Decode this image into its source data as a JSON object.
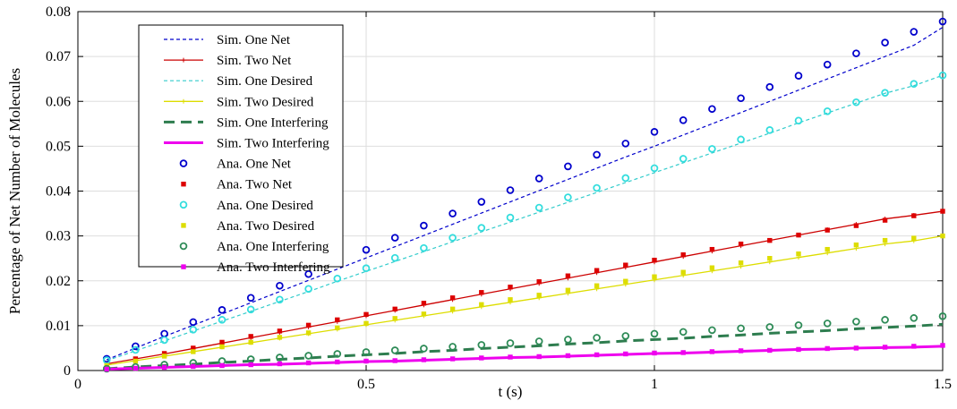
{
  "chart_data": {
    "type": "line",
    "xlabel": "t (s)",
    "ylabel": "Percentage of Net Number of Molecules",
    "xlim": [
      0,
      1.5
    ],
    "ylim": [
      0,
      0.08
    ],
    "xticks": [
      0,
      0.5,
      1,
      1.5
    ],
    "xtick_labels": [
      "0",
      "0.5",
      "1",
      "1.5"
    ],
    "yticks": [
      0,
      0.01,
      0.02,
      0.03,
      0.04,
      0.05,
      0.06,
      0.07,
      0.08
    ],
    "ytick_labels": [
      "0",
      "0.01",
      "0.02",
      "0.03",
      "0.04",
      "0.05",
      "0.06",
      "0.07",
      "0.08"
    ],
    "grid": true,
    "legend_position": "top-left",
    "x": [
      0.05,
      0.1,
      0.15,
      0.2,
      0.25,
      0.3,
      0.35,
      0.4,
      0.45,
      0.5,
      0.55,
      0.6,
      0.65,
      0.7,
      0.75,
      0.8,
      0.85,
      0.9,
      0.95,
      1.0,
      1.05,
      1.1,
      1.15,
      1.2,
      1.25,
      1.3,
      1.35,
      1.4,
      1.45,
      1.5
    ],
    "series": [
      {
        "name": "Sim. One Net",
        "style": "dashed",
        "color": "#0000cc",
        "values": [
          0.0024,
          0.005,
          0.0076,
          0.0101,
          0.0126,
          0.0151,
          0.0176,
          0.0201,
          0.0226,
          0.0251,
          0.0276,
          0.0301,
          0.0326,
          0.0351,
          0.0376,
          0.0401,
          0.0426,
          0.0451,
          0.0476,
          0.05,
          0.0525,
          0.055,
          0.0575,
          0.06,
          0.0625,
          0.065,
          0.0675,
          0.07,
          0.0725,
          0.0765
        ]
      },
      {
        "name": "Sim. Two Net",
        "style": "solid-plus",
        "color": "#cc0000",
        "values": [
          0.0015,
          0.0026,
          0.0037,
          0.0049,
          0.0061,
          0.0073,
          0.0085,
          0.0097,
          0.0109,
          0.0122,
          0.0134,
          0.0146,
          0.0158,
          0.017,
          0.0182,
          0.0194,
          0.0206,
          0.0218,
          0.023,
          0.0242,
          0.0254,
          0.0266,
          0.0278,
          0.029,
          0.0302,
          0.0314,
          0.0326,
          0.0338,
          0.0346,
          0.0355
        ]
      },
      {
        "name": "Sim. One Desired",
        "style": "dashed",
        "color": "#33cccc",
        "values": [
          0.0022,
          0.0044,
          0.0066,
          0.0088,
          0.011,
          0.0132,
          0.0154,
          0.0176,
          0.0199,
          0.0221,
          0.0243,
          0.0265,
          0.0287,
          0.0309,
          0.0331,
          0.0353,
          0.0375,
          0.0397,
          0.0419,
          0.0441,
          0.0463,
          0.0485,
          0.0507,
          0.0529,
          0.0552,
          0.0574,
          0.0596,
          0.0618,
          0.0635,
          0.0658
        ]
      },
      {
        "name": "Sim. Two  Desired",
        "style": "solid-plus",
        "color": "#dddd00",
        "values": [
          0.0012,
          0.0022,
          0.0032,
          0.0042,
          0.0052,
          0.0062,
          0.0072,
          0.0082,
          0.0092,
          0.0102,
          0.0112,
          0.0122,
          0.0132,
          0.0142,
          0.0152,
          0.0162,
          0.0172,
          0.0182,
          0.0192,
          0.0202,
          0.0212,
          0.0222,
          0.0232,
          0.0242,
          0.0252,
          0.0262,
          0.0272,
          0.0282,
          0.0289,
          0.03
        ]
      },
      {
        "name": "Sim. One Interfering",
        "style": "thick-dashed",
        "color": "#2e7d4f",
        "values": [
          0.0004,
          0.0008,
          0.0011,
          0.0014,
          0.0018,
          0.0021,
          0.0025,
          0.0028,
          0.0032,
          0.0035,
          0.0038,
          0.0042,
          0.0045,
          0.0049,
          0.0052,
          0.0055,
          0.0059,
          0.0062,
          0.0066,
          0.0069,
          0.0072,
          0.0076,
          0.0079,
          0.0083,
          0.0086,
          0.0089,
          0.0093,
          0.0096,
          0.0099,
          0.0103
        ]
      },
      {
        "name": "Sim. Two Interfering",
        "style": "thick-solid",
        "color": "#ee00ee",
        "values": [
          0.0003,
          0.0005,
          0.0007,
          0.0009,
          0.0011,
          0.0013,
          0.0014,
          0.0016,
          0.0018,
          0.002,
          0.0021,
          0.0023,
          0.0025,
          0.0027,
          0.0029,
          0.003,
          0.0032,
          0.0034,
          0.0036,
          0.0038,
          0.0039,
          0.0041,
          0.0043,
          0.0045,
          0.0047,
          0.0048,
          0.005,
          0.0051,
          0.0052,
          0.0054
        ]
      },
      {
        "name": "Ana. One Net",
        "style": "circle",
        "color": "#0000cc",
        "values": [
          0.0026,
          0.0054,
          0.0082,
          0.0108,
          0.0135,
          0.0162,
          0.0189,
          0.0215,
          0.0242,
          0.0269,
          0.0296,
          0.0323,
          0.035,
          0.0376,
          0.0402,
          0.0428,
          0.0455,
          0.0481,
          0.0506,
          0.0532,
          0.0558,
          0.0583,
          0.0607,
          0.0632,
          0.0657,
          0.0682,
          0.0707,
          0.0731,
          0.0755,
          0.0778
        ]
      },
      {
        "name": "Ana. Two Net",
        "style": "square",
        "color": "#dd0000",
        "values": [
          0.0013,
          0.0026,
          0.0038,
          0.005,
          0.0063,
          0.0076,
          0.0088,
          0.0101,
          0.0113,
          0.0125,
          0.0137,
          0.015,
          0.0162,
          0.0174,
          0.0186,
          0.0198,
          0.0211,
          0.0223,
          0.0235,
          0.0246,
          0.0258,
          0.027,
          0.0282,
          0.029,
          0.0302,
          0.0313,
          0.0323,
          0.0335,
          0.0345,
          0.0355
        ]
      },
      {
        "name": "Ana. One Desired",
        "style": "circle",
        "color": "#33dddd",
        "values": [
          0.0023,
          0.0046,
          0.0068,
          0.0091,
          0.0113,
          0.0136,
          0.0158,
          0.0182,
          0.0205,
          0.0228,
          0.0251,
          0.0273,
          0.0296,
          0.0318,
          0.0341,
          0.0363,
          0.0386,
          0.0407,
          0.0429,
          0.0451,
          0.0472,
          0.0494,
          0.0515,
          0.0536,
          0.0557,
          0.0578,
          0.0598,
          0.0619,
          0.0639,
          0.0658
        ]
      },
      {
        "name": "Ana. Two Desired",
        "style": "square",
        "color": "#dddd00",
        "values": [
          0.0011,
          0.0021,
          0.0032,
          0.0042,
          0.0053,
          0.0063,
          0.0074,
          0.0084,
          0.0095,
          0.0105,
          0.0116,
          0.0126,
          0.0137,
          0.0147,
          0.0158,
          0.0168,
          0.0179,
          0.0189,
          0.0199,
          0.0209,
          0.0219,
          0.0229,
          0.024,
          0.025,
          0.026,
          0.027,
          0.028,
          0.029,
          0.0295,
          0.03
        ]
      },
      {
        "name": "Ana. One Interfering",
        "style": "circle",
        "color": "#2e8b57",
        "values": [
          0.0004,
          0.0008,
          0.0013,
          0.0017,
          0.0021,
          0.0025,
          0.0029,
          0.0033,
          0.0037,
          0.0041,
          0.0045,
          0.0049,
          0.0053,
          0.0057,
          0.0061,
          0.0065,
          0.0069,
          0.0073,
          0.0077,
          0.0082,
          0.0086,
          0.009,
          0.0094,
          0.0097,
          0.0101,
          0.0105,
          0.0109,
          0.0113,
          0.0117,
          0.0121
        ]
      },
      {
        "name": "Ana. Two Interfering",
        "style": "square",
        "color": "#ee00ee",
        "values": [
          0.0003,
          0.0005,
          0.0007,
          0.0009,
          0.0011,
          0.0013,
          0.0015,
          0.0017,
          0.0019,
          0.0021,
          0.0022,
          0.0024,
          0.0026,
          0.0028,
          0.003,
          0.0031,
          0.0033,
          0.0035,
          0.0037,
          0.0039,
          0.004,
          0.0042,
          0.0044,
          0.0045,
          0.0047,
          0.0049,
          0.005,
          0.0052,
          0.0054,
          0.0056
        ]
      }
    ]
  }
}
